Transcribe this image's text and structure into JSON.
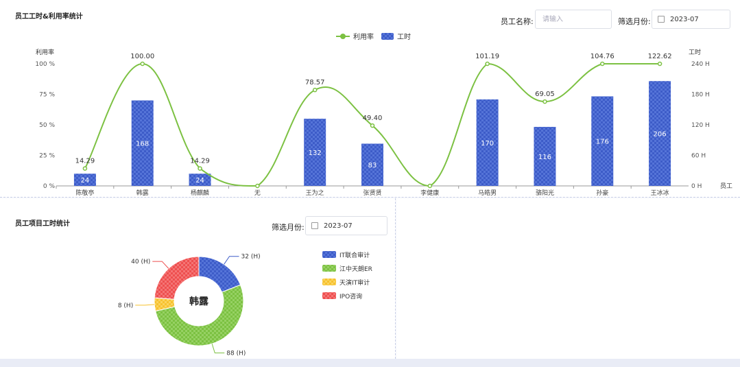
{
  "top": {
    "title": "员工工时&利用率统计",
    "employee_label": "员工名称:",
    "employee_placeholder": "请输入",
    "month_label": "筛选月份:",
    "month_value": "2023-07"
  },
  "bottom": {
    "title": "员工项目工时统计",
    "month_label": "筛选月份:",
    "month_value": "2023-07"
  },
  "colors": {
    "bar": "#3d5cc8",
    "line": "#7cc142",
    "pie": [
      "#3d5cc8",
      "#7cc142",
      "#f7c12e",
      "#ee4f4f"
    ]
  },
  "chart_data": [
    {
      "type": "bar-line",
      "legend": [
        "利用率",
        "工时"
      ],
      "legend_position": "top-center",
      "ylabel_left": "利用率",
      "ylabel_right": "工时",
      "xlabel_right": "员工",
      "left_ticks": [
        "0 %",
        "25 %",
        "50 %",
        "75 %",
        "100 %"
      ],
      "right_ticks": [
        "0 H",
        "60 H",
        "120 H",
        "180 H",
        "240 H"
      ],
      "ylim_left": [
        0,
        100
      ],
      "ylim_right": [
        0,
        240
      ],
      "categories": [
        "陈敬亭",
        "韩露",
        "杨麒麟",
        "无",
        "王为之",
        "张贤贤",
        "李健康",
        "马皓男",
        "骆阳光",
        "孙豪",
        "王冰冰"
      ],
      "series": [
        {
          "name": "利用率",
          "type": "line",
          "values": [
            14.29,
            100.0,
            14.29,
            0,
            78.57,
            49.4,
            0,
            101.19,
            69.05,
            104.76,
            122.62
          ],
          "labels": [
            "14.29",
            "100.00",
            "14.29",
            "",
            "78.57",
            "49.40",
            "",
            "101.19",
            "69.05",
            "104.76",
            "122.62"
          ]
        },
        {
          "name": "工时",
          "type": "bar",
          "values": [
            24,
            168,
            24,
            0,
            132,
            83,
            0,
            170,
            116,
            176,
            206
          ],
          "labels": [
            "24",
            "168",
            "24",
            "",
            "132",
            "83",
            "",
            "170",
            "116",
            "176",
            "206"
          ]
        }
      ]
    },
    {
      "type": "pie",
      "center_label": "韩露",
      "legend_position": "right",
      "slices": [
        {
          "name": "IT联合审计",
          "value": 32,
          "label": "32 (H)"
        },
        {
          "name": "江中天朗ER",
          "value": 88,
          "label": "88 (H)"
        },
        {
          "name": "天演IT审计",
          "value": 8,
          "label": "8 (H)"
        },
        {
          "name": "IPO咨询",
          "value": 40,
          "label": "40 (H)"
        }
      ]
    }
  ]
}
